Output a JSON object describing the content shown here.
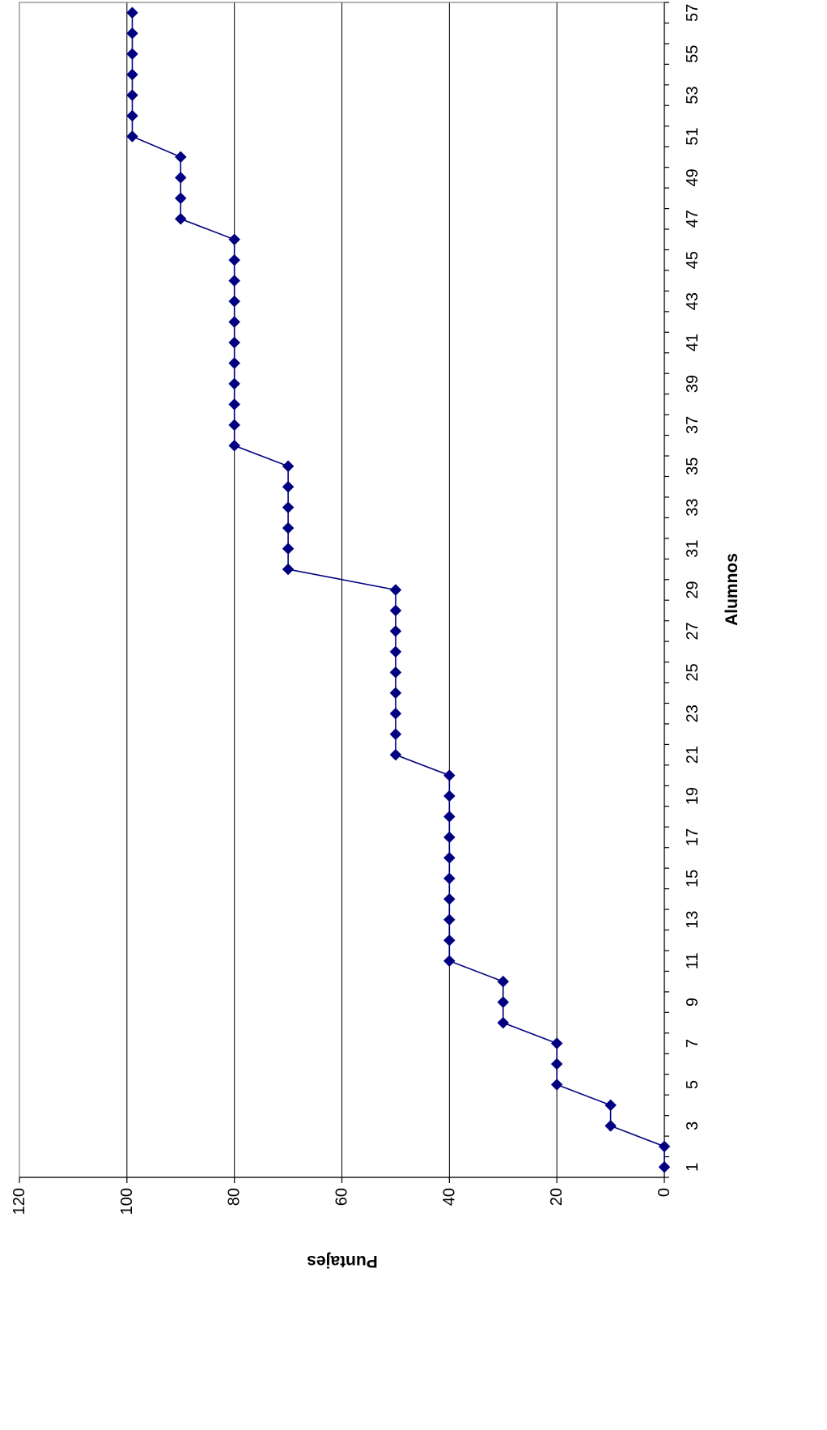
{
  "chart_data": {
    "type": "line",
    "orientation": "rotated-90-clockwise",
    "title": "",
    "xlabel": "Alumnos",
    "ylabel": "Puntajes",
    "xlim": [
      1,
      57
    ],
    "ylim": [
      0,
      120
    ],
    "x_tick_labels": [
      "1",
      "3",
      "5",
      "7",
      "9",
      "11",
      "13",
      "15",
      "17",
      "19",
      "21",
      "23",
      "25",
      "27",
      "29",
      "31",
      "33",
      "35",
      "37",
      "39",
      "41",
      "43",
      "45",
      "47",
      "49",
      "51",
      "53",
      "55",
      "57"
    ],
    "y_tick_labels": [
      "0",
      "20",
      "40",
      "60",
      "80",
      "100",
      "120"
    ],
    "y_gridlines": [
      20,
      40,
      60,
      80,
      100
    ],
    "grid": "horizontal-major",
    "legend": "none",
    "series": [
      {
        "color": "#000080",
        "marker": "diamond",
        "x": [
          1,
          2,
          3,
          4,
          5,
          6,
          7,
          8,
          9,
          10,
          11,
          12,
          13,
          14,
          15,
          16,
          17,
          18,
          19,
          20,
          21,
          22,
          23,
          24,
          25,
          26,
          27,
          28,
          29,
          30,
          31,
          32,
          33,
          34,
          35,
          36,
          37,
          38,
          39,
          40,
          41,
          42,
          43,
          44,
          45,
          46,
          47,
          48,
          49,
          50,
          51,
          52,
          53,
          54,
          55,
          56,
          57
        ],
        "values": [
          0,
          0,
          10,
          10,
          20,
          20,
          20,
          30,
          30,
          30,
          40,
          40,
          40,
          40,
          40,
          40,
          40,
          40,
          40,
          40,
          50,
          50,
          50,
          50,
          50,
          50,
          50,
          50,
          50,
          70,
          70,
          70,
          70,
          70,
          70,
          80,
          80,
          80,
          80,
          80,
          80,
          80,
          80,
          80,
          80,
          80,
          90,
          90,
          90,
          90,
          99,
          99,
          99,
          99,
          99,
          99,
          99
        ]
      }
    ]
  }
}
